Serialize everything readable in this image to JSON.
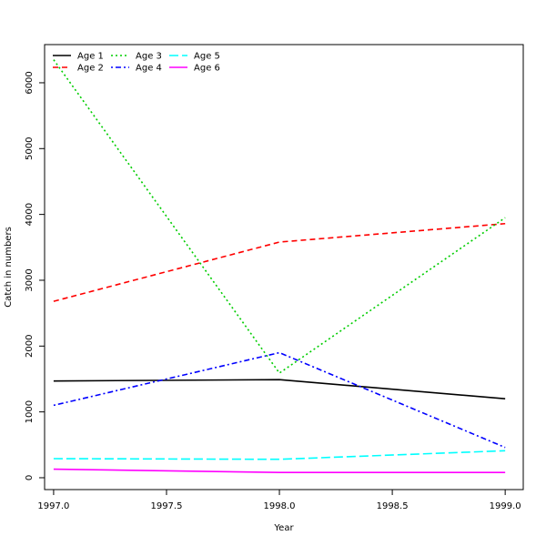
{
  "chart_data": {
    "type": "line",
    "title": "",
    "xlabel": "Year",
    "ylabel": "Catch in numbers",
    "xlim": [
      1996.96,
      1999.08
    ],
    "ylim": [
      -180,
      6580
    ],
    "x_ticks": [
      1997.0,
      1997.5,
      1998.0,
      1998.5,
      1999.0
    ],
    "x_tick_labels": [
      "1997.0",
      "1997.5",
      "1998.0",
      "1998.5",
      "1999.0"
    ],
    "y_ticks": [
      0,
      1000,
      2000,
      3000,
      4000,
      5000,
      6000
    ],
    "y_tick_labels": [
      "0",
      "1000",
      "2000",
      "3000",
      "4000",
      "5000",
      "6000"
    ],
    "grid": false,
    "legend_position": "top-left",
    "x": [
      1997,
      1998,
      1999
    ],
    "series": [
      {
        "name": "Age 1",
        "values": [
          1470,
          1490,
          1200
        ],
        "color": "#000000",
        "dash": "solid"
      },
      {
        "name": "Age 2",
        "values": [
          2680,
          3580,
          3860
        ],
        "color": "#ff0000",
        "dash": "dashed"
      },
      {
        "name": "Age 3",
        "values": [
          6350,
          1590,
          3950
        ],
        "color": "#00cd00",
        "dash": "dotted"
      },
      {
        "name": "Age 4",
        "values": [
          1100,
          1900,
          460
        ],
        "color": "#0000ff",
        "dash": "dotdash"
      },
      {
        "name": "Age 5",
        "values": [
          290,
          280,
          410
        ],
        "color": "#00ffff",
        "dash": "longdash"
      },
      {
        "name": "Age 6",
        "values": [
          130,
          80,
          80
        ],
        "color": "#ff00ff",
        "dash": "solid"
      }
    ]
  }
}
